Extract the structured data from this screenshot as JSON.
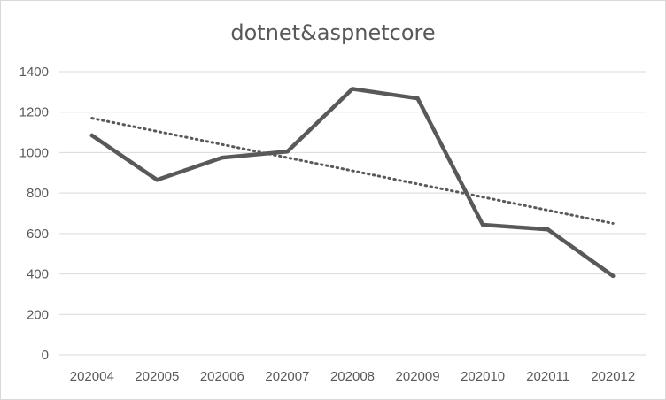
{
  "chart_data": {
    "type": "line",
    "title": "dotnet&aspnetcore",
    "categories": [
      "202004",
      "202005",
      "202006",
      "202007",
      "202008",
      "202009",
      "202010",
      "202011",
      "202012"
    ],
    "series": [
      {
        "values": [
          1085,
          865,
          975,
          1005,
          1315,
          1268,
          643,
          620,
          390
        ]
      }
    ],
    "trendline": {
      "type": "linear",
      "start": 1170,
      "end": 650
    },
    "ylim": [
      0,
      1400
    ],
    "yticks": [
      0,
      200,
      400,
      600,
      800,
      1000,
      1200,
      1400
    ],
    "xlabel": "",
    "ylabel": "",
    "grid": true,
    "legend": "none",
    "colors": {
      "series": "#595959",
      "grid": "#d9d9d9",
      "text": "#595959"
    }
  }
}
